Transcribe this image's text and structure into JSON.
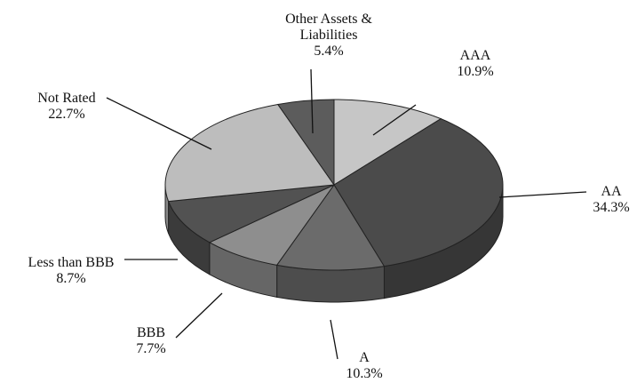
{
  "chart_data": {
    "type": "pie",
    "categories": [
      "AAA",
      "AA",
      "A",
      "BBB",
      "Less than BBB",
      "Not Rated",
      "Other Assets & Liabilities"
    ],
    "values": [
      10.9,
      34.3,
      10.3,
      7.7,
      8.7,
      22.7,
      5.4
    ],
    "value_labels": [
      "10.9%",
      "34.3%",
      "10.3%",
      "7.7%",
      "8.7%",
      "22.7%",
      "5.4%"
    ],
    "colors": [
      "#c6c6c6",
      "#4b4b4b",
      "#6b6b6b",
      "#8e8e8e",
      "#525252",
      "#bdbdbd",
      "#5c5c5c"
    ]
  }
}
